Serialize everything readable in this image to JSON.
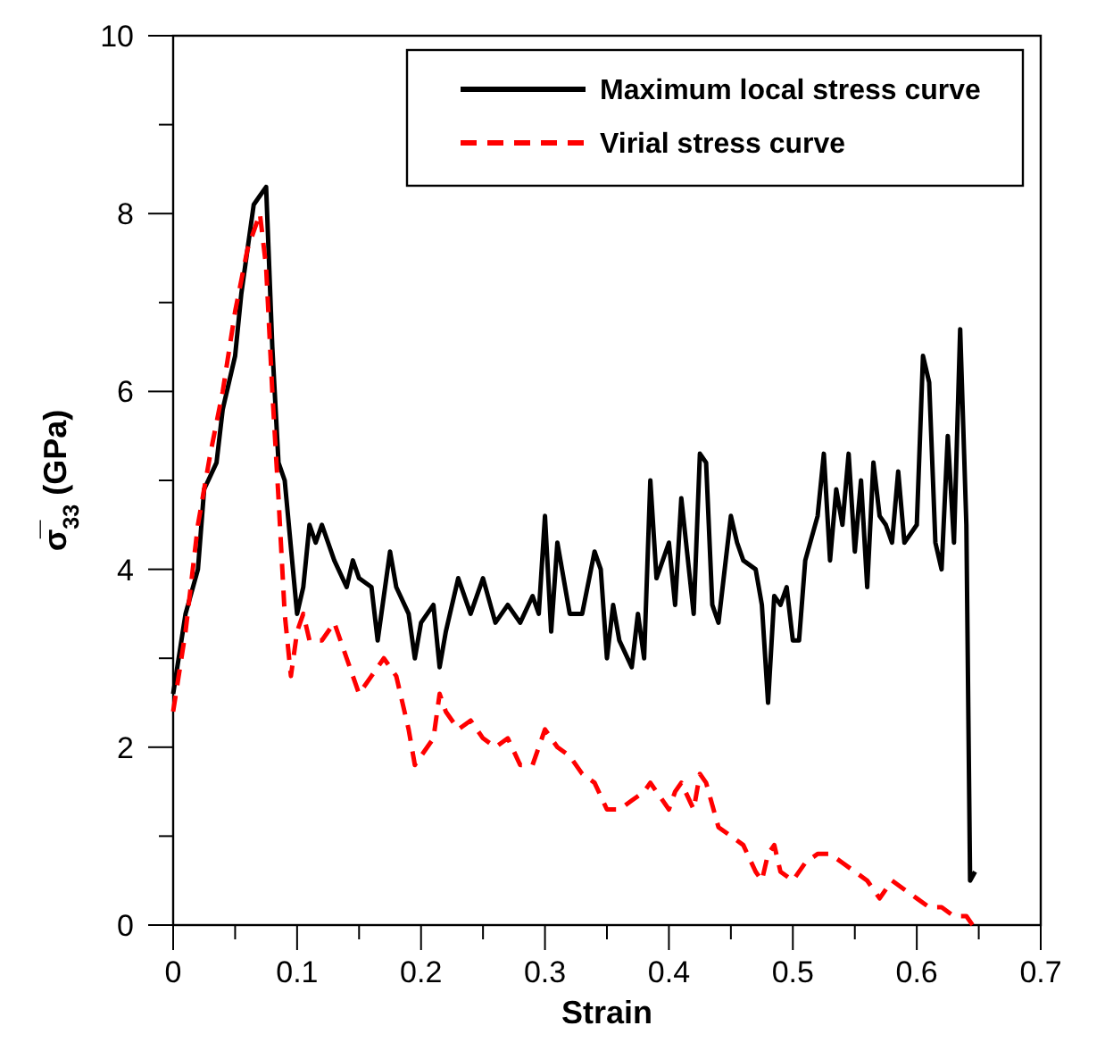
{
  "chart_data": {
    "type": "line",
    "xlabel": "Strain",
    "ylabel": "σ̅$_{33}$ (GPa)",
    "xlim": [
      0,
      0.7
    ],
    "ylim": [
      0,
      10
    ],
    "xticks": [
      0,
      {
        "value": 0.05,
        "label": null
      },
      0.1,
      {
        "value": 0.15,
        "label": null
      },
      0.2,
      {
        "value": 0.25,
        "label": null
      },
      0.3,
      {
        "value": 0.35,
        "label": null
      },
      0.4,
      {
        "value": 0.45,
        "label": null
      },
      0.5,
      {
        "value": 0.55,
        "label": null
      },
      0.6,
      {
        "value": 0.65,
        "label": null
      },
      0.7
    ],
    "yticks": [
      0,
      {
        "value": 1,
        "label": null
      },
      2,
      {
        "value": 3,
        "label": null
      },
      4,
      {
        "value": 5,
        "label": null
      },
      6,
      {
        "value": 7,
        "label": null
      },
      8,
      {
        "value": 9,
        "label": null
      },
      10
    ],
    "grid": false,
    "legend": "top right",
    "marker": "none",
    "series": [
      {
        "name": "Maximum local stress curve",
        "color": "#000000",
        "line_style": "solid",
        "x": [
          0,
          0.01,
          0.02,
          0.025,
          0.035,
          0.04,
          0.05,
          0.055,
          0.06,
          0.065,
          0.07,
          0.075,
          0.08,
          0.085,
          0.09,
          0.1,
          0.105,
          0.11,
          0.115,
          0.12,
          0.13,
          0.14,
          0.145,
          0.15,
          0.16,
          0.165,
          0.175,
          0.18,
          0.19,
          0.195,
          0.2,
          0.21,
          0.215,
          0.22,
          0.23,
          0.24,
          0.25,
          0.26,
          0.27,
          0.28,
          0.29,
          0.295,
          0.3,
          0.305,
          0.31,
          0.32,
          0.33,
          0.34,
          0.345,
          0.35,
          0.355,
          0.36,
          0.37,
          0.375,
          0.38,
          0.385,
          0.39,
          0.4,
          0.405,
          0.41,
          0.42,
          0.425,
          0.43,
          0.435,
          0.44,
          0.45,
          0.455,
          0.46,
          0.47,
          0.475,
          0.48,
          0.485,
          0.49,
          0.495,
          0.5,
          0.505,
          0.51,
          0.52,
          0.525,
          0.53,
          0.535,
          0.54,
          0.545,
          0.55,
          0.555,
          0.56,
          0.565,
          0.57,
          0.575,
          0.58,
          0.585,
          0.59,
          0.6,
          0.605,
          0.61,
          0.615,
          0.62,
          0.625,
          0.63,
          0.635,
          0.64,
          0.643,
          0.647
        ],
        "values": [
          2.6,
          3.5,
          4.0,
          4.9,
          5.2,
          5.8,
          6.4,
          7.1,
          7.6,
          8.1,
          8.2,
          8.3,
          6.5,
          5.2,
          5.0,
          3.5,
          3.8,
          4.5,
          4.3,
          4.5,
          4.1,
          3.8,
          4.1,
          3.9,
          3.8,
          3.2,
          4.2,
          3.8,
          3.5,
          3.0,
          3.4,
          3.6,
          2.9,
          3.3,
          3.9,
          3.5,
          3.9,
          3.4,
          3.6,
          3.4,
          3.7,
          3.5,
          4.6,
          3.3,
          4.3,
          3.5,
          3.5,
          4.2,
          4.0,
          3.0,
          3.6,
          3.2,
          2.9,
          3.5,
          3.0,
          5.0,
          3.9,
          4.3,
          3.6,
          4.8,
          3.5,
          5.3,
          5.2,
          3.6,
          3.4,
          4.6,
          4.3,
          4.1,
          4.0,
          3.6,
          2.5,
          3.7,
          3.6,
          3.8,
          3.2,
          3.2,
          4.1,
          4.6,
          5.3,
          4.1,
          4.9,
          4.5,
          5.3,
          4.2,
          5.0,
          3.8,
          5.2,
          4.6,
          4.5,
          4.3,
          5.1,
          4.3,
          4.5,
          6.4,
          6.1,
          4.3,
          4.0,
          5.5,
          4.3,
          6.7,
          4.5,
          0.5,
          0.6
        ]
      },
      {
        "name": "Virial stress curve",
        "color": "#ff0000",
        "line_style": "dashed",
        "x": [
          0,
          0.01,
          0.02,
          0.03,
          0.04,
          0.05,
          0.06,
          0.07,
          0.075,
          0.08,
          0.085,
          0.09,
          0.095,
          0.1,
          0.105,
          0.11,
          0.12,
          0.13,
          0.14,
          0.15,
          0.16,
          0.17,
          0.18,
          0.19,
          0.195,
          0.2,
          0.21,
          0.215,
          0.22,
          0.23,
          0.24,
          0.25,
          0.26,
          0.27,
          0.28,
          0.29,
          0.3,
          0.31,
          0.32,
          0.33,
          0.34,
          0.35,
          0.36,
          0.37,
          0.38,
          0.385,
          0.39,
          0.4,
          0.405,
          0.41,
          0.42,
          0.425,
          0.43,
          0.44,
          0.45,
          0.46,
          0.47,
          0.475,
          0.48,
          0.485,
          0.49,
          0.5,
          0.51,
          0.52,
          0.53,
          0.54,
          0.55,
          0.56,
          0.57,
          0.58,
          0.59,
          0.6,
          0.61,
          0.62,
          0.63,
          0.64,
          0.645
        ],
        "values": [
          2.4,
          3.3,
          4.5,
          5.3,
          6.0,
          6.9,
          7.6,
          8.0,
          7.4,
          6.0,
          4.8,
          3.5,
          2.8,
          3.3,
          3.5,
          3.2,
          3.2,
          3.4,
          3.0,
          2.6,
          2.8,
          3.0,
          2.8,
          2.2,
          1.8,
          1.9,
          2.1,
          2.6,
          2.4,
          2.2,
          2.3,
          2.1,
          2.0,
          2.1,
          1.8,
          1.8,
          2.2,
          2.0,
          1.9,
          1.7,
          1.6,
          1.3,
          1.3,
          1.4,
          1.5,
          1.6,
          1.5,
          1.3,
          1.5,
          1.6,
          1.3,
          1.7,
          1.6,
          1.1,
          1.0,
          0.9,
          0.6,
          0.5,
          0.8,
          0.9,
          0.6,
          0.5,
          0.7,
          0.8,
          0.8,
          0.7,
          0.6,
          0.5,
          0.3,
          0.5,
          0.4,
          0.3,
          0.2,
          0.2,
          0.1,
          0.1,
          0
        ]
      }
    ]
  }
}
